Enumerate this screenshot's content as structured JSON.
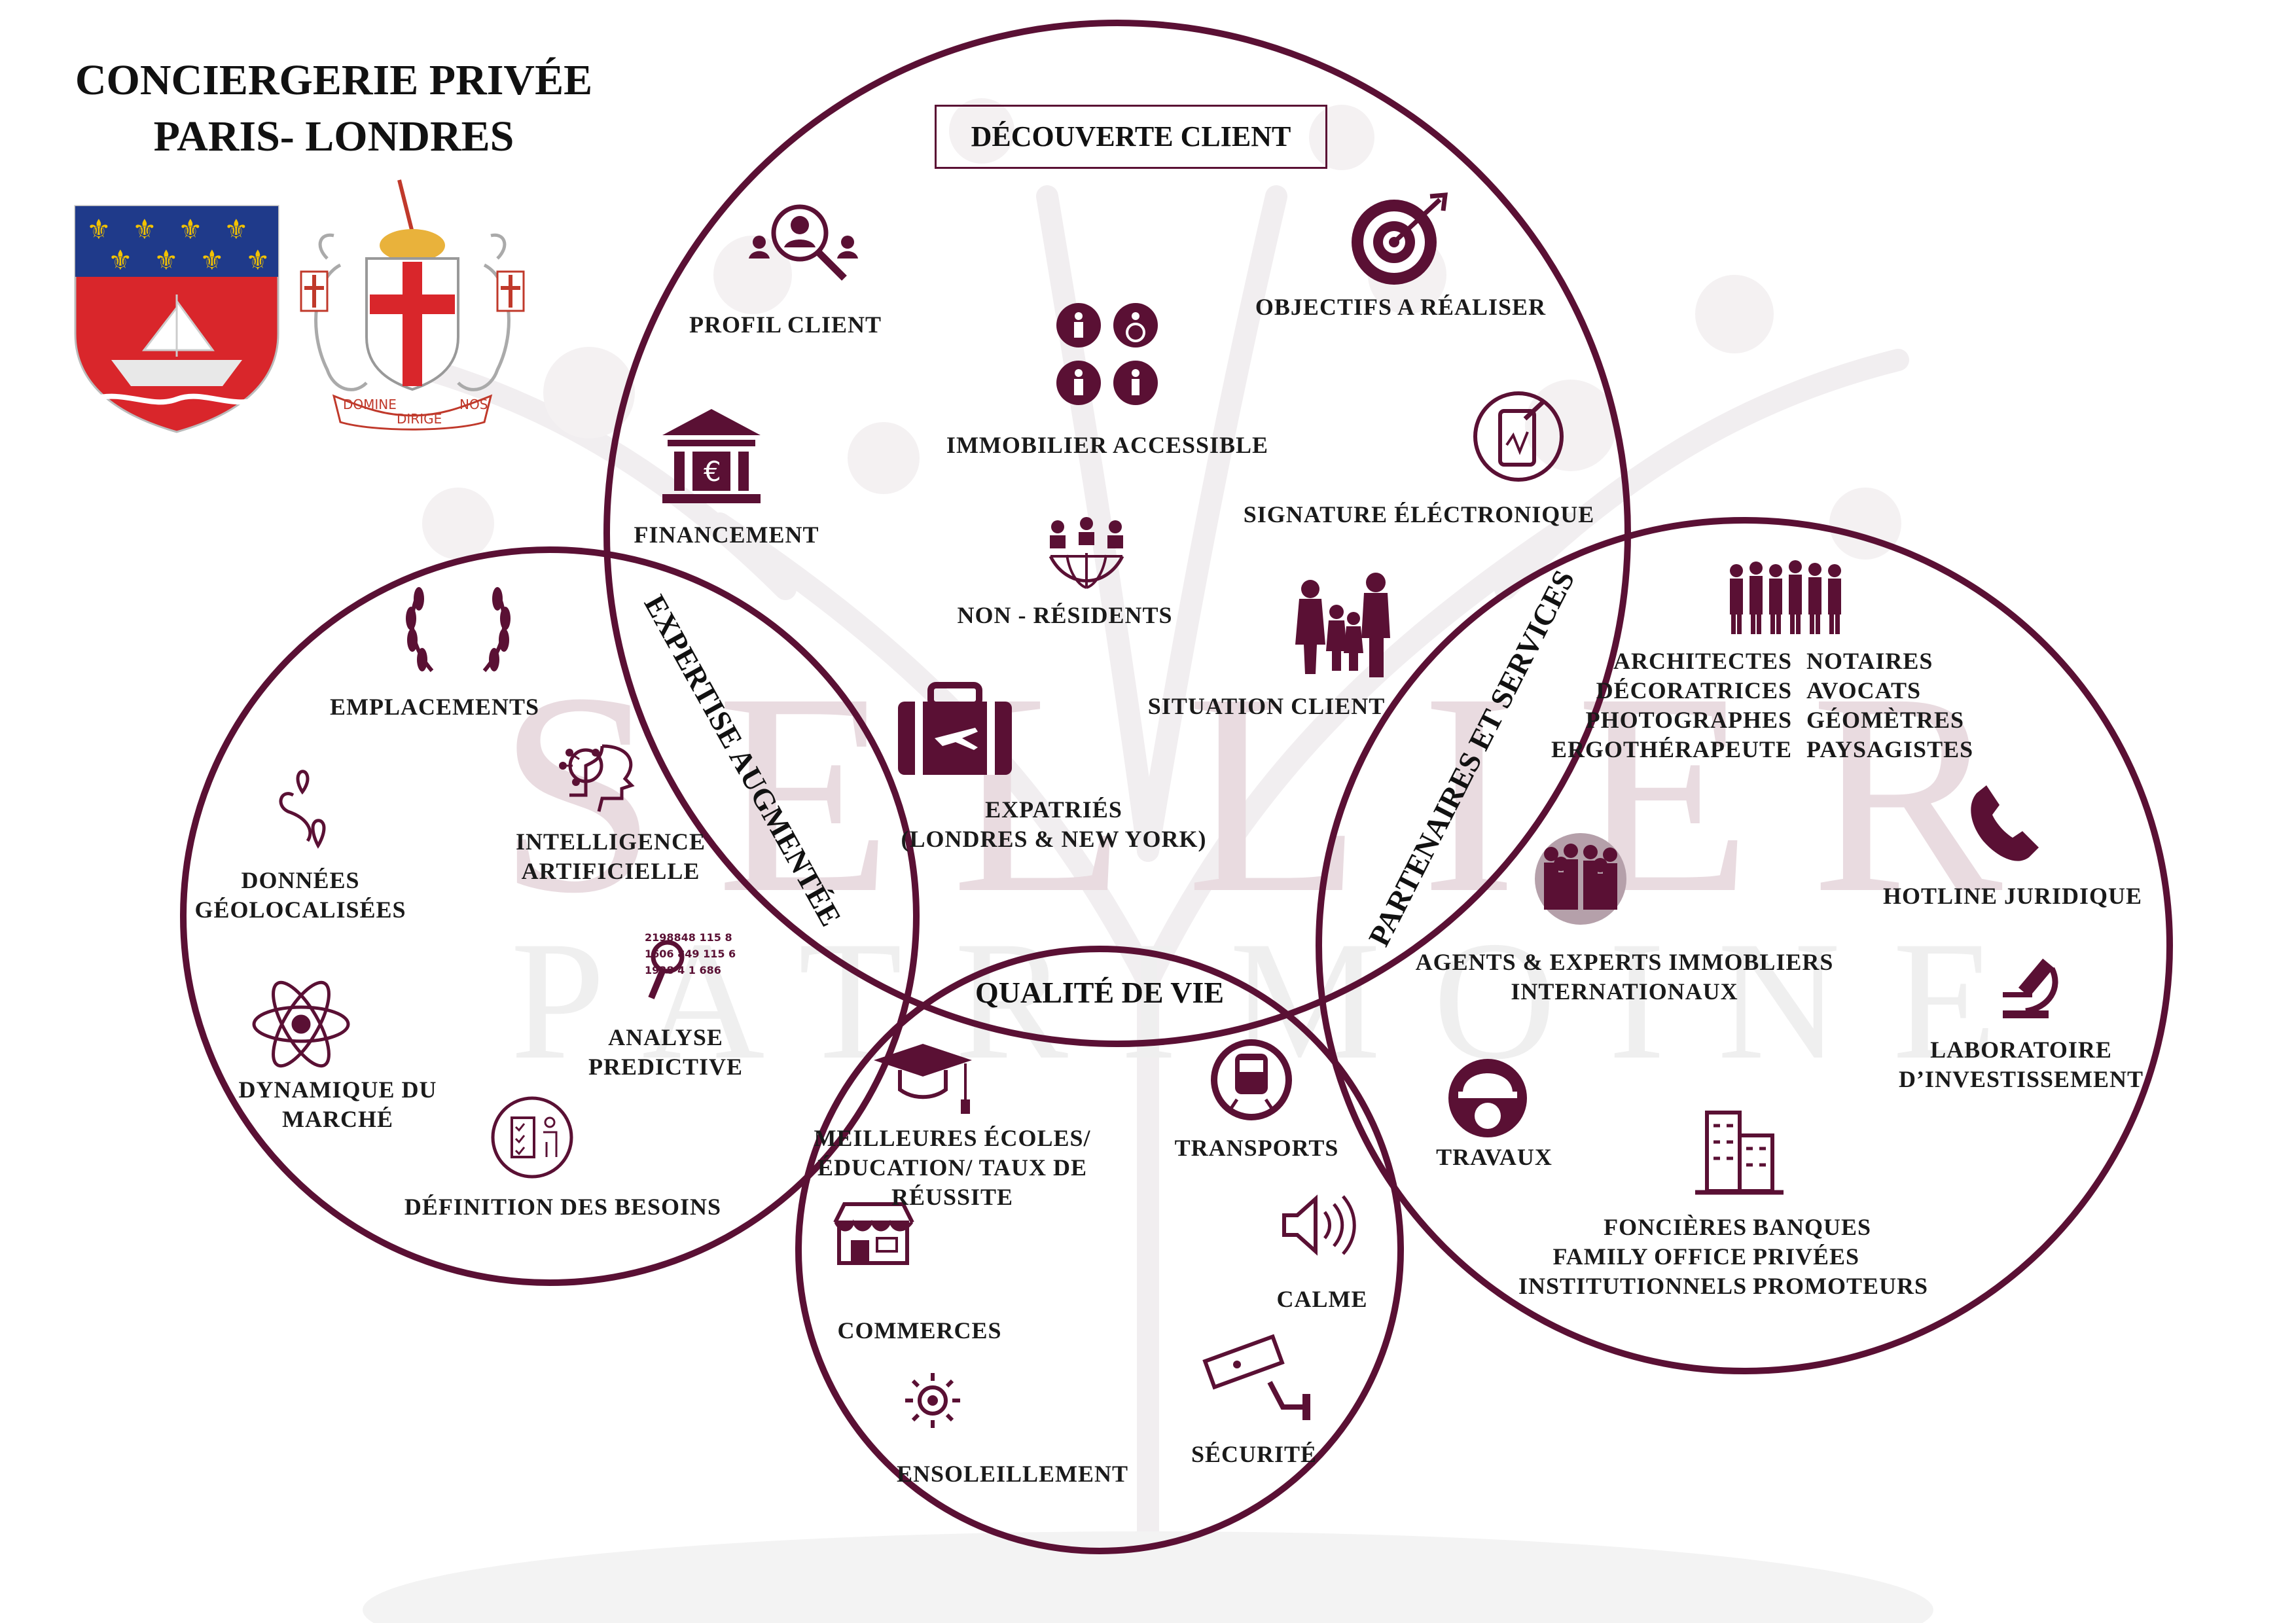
{
  "header": {
    "line1": "CONCIERGERIE PRIVÉE",
    "line2": "PARIS- LONDRES"
  },
  "crest": {
    "motto_left": "DOMINE",
    "motto_center": "DIRIGE",
    "motto_right": "NOS"
  },
  "watermark": {
    "line1": "SELLIER",
    "line2": "PATRIMOINE"
  },
  "colors": {
    "accent": "#5a1034",
    "watermark": "#e9dbe0",
    "paris_blue": "#1f3a8a",
    "paris_red": "#d9262b",
    "gold": "#f2c200"
  },
  "sections": {
    "decouverte": "DÉCOUVERTE CLIENT",
    "expertise": "EXPERTISE AUGMENTÉE",
    "partenaires": "PARTENAIRES ET SERVICES",
    "qualite": "QUALITÉ DE VIE"
  },
  "labels": {
    "profil_client": "PROFIL  CLIENT",
    "objectifs": "OBJECTIFS A RÉALISER",
    "immobilier_accessible": "IMMOBILIER ACCESSIBLE",
    "financement": "FINANCEMENT",
    "signature": "SIGNATURE ÉLÉCTRONIQUE",
    "non_residents": "NON - RÉSIDENTS",
    "situation_client": "SITUATION CLIENT",
    "expatries_1": "EXPATRIÉS",
    "expatries_2": "(LONDRES & NEW YORK)",
    "emplacements": "EMPLACEMENTS",
    "ia_1": "INTELLIGENCE",
    "ia_2": "ARTIFICIELLE",
    "donnees_1": "DONNÉES",
    "donnees_2": "GÉOLOCALISÉES",
    "analyse_1": "ANALYSE",
    "analyse_2": "PREDICTIVE",
    "dynamique_1": "DYNAMIQUE DU",
    "dynamique_2": "MARCHÉ",
    "definition": "DÉFINITION DES BESOINS",
    "numbers_1": "2198848 115 8",
    "numbers_2": "1606 849 115 6",
    "numbers_3": "1938 4 1 686",
    "partners_left_1": "ARCHITECTES",
    "partners_left_2": "DÉCORATRICES",
    "partners_left_3": "PHOTOGRAPHES",
    "partners_left_4": "ERGOTHÉRAPEUTE",
    "partners_right_1": "NOTAIRES",
    "partners_right_2": "AVOCATS",
    "partners_right_3": "GÉOMÈTRES",
    "partners_right_4": "PAYSAGISTES",
    "hotline": "HOTLINE JURIDIQUE",
    "agents_1": "AGENTS & EXPERTS IMMOBLIERS",
    "agents_2": "INTERNATIONAUX",
    "labo_1": "LABORATOIRE",
    "labo_2": "D’INVESTISSEMENT",
    "travaux": "TRAVAUX",
    "fonc_left_1": "FONCIÈRES",
    "fonc_left_2": "FAMILY OFFICE",
    "fonc_left_3": "INSTITUTIONNELS",
    "fonc_right_1": "BANQUES",
    "fonc_right_2": "PRIVÉES",
    "fonc_right_3": "PROMOTEURS",
    "ecoles_1": "MEILLEURES ÉCOLES/",
    "ecoles_2": "ÉDUCATION/ TAUX DE",
    "ecoles_3": "RÉUSSITE",
    "transports": "TRANSPORTS",
    "calme": "CALME",
    "commerces": "COMMERCES",
    "ensoleillement": "ENSOLEILLEMENT",
    "securite": "SÉCURITÉ"
  }
}
